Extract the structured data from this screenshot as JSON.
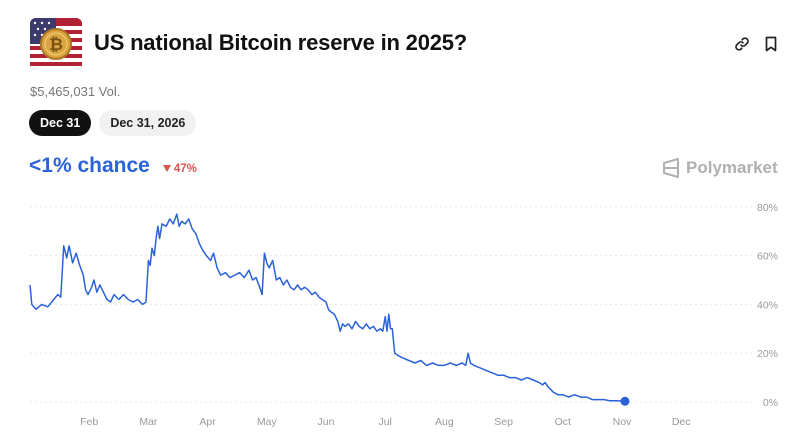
{
  "market": {
    "title": "US national Bitcoin reserve in 2025?",
    "volume": "$5,465,031 Vol.",
    "icon": "us-flag-bitcoin-icon"
  },
  "header_actions": [
    {
      "name": "link-icon"
    },
    {
      "name": "bookmark-icon"
    }
  ],
  "tabs": [
    {
      "label": "Dec 31",
      "active": true
    },
    {
      "label": "Dec 31, 2026",
      "active": false
    }
  ],
  "probability": {
    "chance_text": "<1% chance",
    "delta_text": "47%",
    "delta_direction": "down",
    "delta_color": "#d9534f"
  },
  "brand": {
    "name": "Polymarket"
  },
  "colors": {
    "line": "#2a62d9",
    "accent": "#2a62d9"
  },
  "chart_data": {
    "type": "line",
    "title": "",
    "xlabel": "",
    "ylabel": "",
    "x_ticks": [
      "Feb",
      "Mar",
      "Apr",
      "May",
      "Jun",
      "Jul",
      "Aug",
      "Sep",
      "Oct",
      "Nov",
      "Dec"
    ],
    "y_ticks": [
      "80%",
      "60%",
      "40%",
      "20%",
      "0%"
    ],
    "ylim": [
      0,
      80
    ],
    "xlim": [
      0,
      11.75
    ],
    "grid": true,
    "series": [
      {
        "values": [
          [
            0.0,
            48
          ],
          [
            0.03,
            40
          ],
          [
            0.1,
            38
          ],
          [
            0.2,
            40
          ],
          [
            0.3,
            39
          ],
          [
            0.4,
            42
          ],
          [
            0.47,
            44
          ],
          [
            0.52,
            43
          ],
          [
            0.57,
            64
          ],
          [
            0.62,
            59
          ],
          [
            0.66,
            64
          ],
          [
            0.72,
            57
          ],
          [
            0.78,
            61
          ],
          [
            0.84,
            56
          ],
          [
            0.9,
            52
          ],
          [
            0.94,
            46
          ],
          [
            0.98,
            44
          ],
          [
            1.04,
            47
          ],
          [
            1.08,
            50
          ],
          [
            1.13,
            45
          ],
          [
            1.18,
            48
          ],
          [
            1.24,
            45
          ],
          [
            1.3,
            42
          ],
          [
            1.36,
            41
          ],
          [
            1.42,
            44
          ],
          [
            1.5,
            42
          ],
          [
            1.58,
            44
          ],
          [
            1.66,
            42
          ],
          [
            1.74,
            41
          ],
          [
            1.82,
            42
          ],
          [
            1.9,
            40
          ],
          [
            1.96,
            41
          ],
          [
            2.0,
            58
          ],
          [
            2.03,
            56
          ],
          [
            2.06,
            63
          ],
          [
            2.1,
            60
          ],
          [
            2.13,
            67
          ],
          [
            2.16,
            72
          ],
          [
            2.19,
            67
          ],
          [
            2.23,
            73
          ],
          [
            2.3,
            72
          ],
          [
            2.36,
            75
          ],
          [
            2.42,
            73
          ],
          [
            2.48,
            77
          ],
          [
            2.52,
            72
          ],
          [
            2.56,
            74
          ],
          [
            2.62,
            73
          ],
          [
            2.68,
            75
          ],
          [
            2.74,
            71
          ],
          [
            2.8,
            69
          ],
          [
            2.86,
            65
          ],
          [
            2.92,
            62
          ],
          [
            2.98,
            60
          ],
          [
            3.05,
            58
          ],
          [
            3.1,
            61
          ],
          [
            3.16,
            55
          ],
          [
            3.22,
            52
          ],
          [
            3.3,
            53
          ],
          [
            3.38,
            51
          ],
          [
            3.46,
            52
          ],
          [
            3.54,
            53
          ],
          [
            3.62,
            51
          ],
          [
            3.7,
            54
          ],
          [
            3.76,
            50
          ],
          [
            3.82,
            51
          ],
          [
            3.88,
            47
          ],
          [
            3.92,
            44
          ],
          [
            3.96,
            61
          ],
          [
            4.0,
            57
          ],
          [
            4.04,
            55
          ],
          [
            4.1,
            58
          ],
          [
            4.16,
            50
          ],
          [
            4.22,
            51
          ],
          [
            4.28,
            48
          ],
          [
            4.34,
            50
          ],
          [
            4.4,
            47
          ],
          [
            4.46,
            46
          ],
          [
            4.52,
            48
          ],
          [
            4.58,
            46
          ],
          [
            4.64,
            47
          ],
          [
            4.7,
            46
          ],
          [
            4.76,
            44
          ],
          [
            4.82,
            45
          ],
          [
            4.88,
            43
          ],
          [
            4.94,
            42
          ],
          [
            5.0,
            41
          ],
          [
            5.04,
            38
          ],
          [
            5.08,
            37
          ],
          [
            5.14,
            36
          ],
          [
            5.2,
            33
          ],
          [
            5.24,
            29
          ],
          [
            5.28,
            32
          ],
          [
            5.32,
            31
          ],
          [
            5.38,
            32
          ],
          [
            5.44,
            30
          ],
          [
            5.5,
            33
          ],
          [
            5.56,
            31
          ],
          [
            5.62,
            30
          ],
          [
            5.68,
            32
          ],
          [
            5.74,
            30
          ],
          [
            5.8,
            31
          ],
          [
            5.86,
            29
          ],
          [
            5.92,
            30
          ],
          [
            5.96,
            29
          ],
          [
            6.0,
            35
          ],
          [
            6.03,
            29
          ],
          [
            6.06,
            36
          ],
          [
            6.09,
            30
          ],
          [
            6.12,
            30
          ],
          [
            6.16,
            20
          ],
          [
            6.22,
            19
          ],
          [
            6.3,
            18
          ],
          [
            6.4,
            17
          ],
          [
            6.5,
            16
          ],
          [
            6.6,
            17
          ],
          [
            6.7,
            15
          ],
          [
            6.8,
            16
          ],
          [
            6.9,
            15
          ],
          [
            7.0,
            15
          ],
          [
            7.1,
            16
          ],
          [
            7.2,
            15
          ],
          [
            7.3,
            16
          ],
          [
            7.36,
            15
          ],
          [
            7.4,
            20
          ],
          [
            7.44,
            16
          ],
          [
            7.5,
            15
          ],
          [
            7.6,
            14
          ],
          [
            7.7,
            13
          ],
          [
            7.8,
            12
          ],
          [
            7.9,
            11
          ],
          [
            8.0,
            11
          ],
          [
            8.1,
            10
          ],
          [
            8.2,
            10
          ],
          [
            8.3,
            9
          ],
          [
            8.4,
            10
          ],
          [
            8.5,
            9
          ],
          [
            8.6,
            8
          ],
          [
            8.66,
            7
          ],
          [
            8.7,
            8
          ],
          [
            8.76,
            6
          ],
          [
            8.84,
            4
          ],
          [
            8.92,
            3
          ],
          [
            9.0,
            3
          ],
          [
            9.1,
            2
          ],
          [
            9.2,
            3
          ],
          [
            9.3,
            2
          ],
          [
            9.4,
            2
          ],
          [
            9.5,
            1
          ],
          [
            9.6,
            1
          ],
          [
            9.7,
            1
          ],
          [
            9.8,
            0.5
          ],
          [
            9.9,
            0.5
          ],
          [
            10.0,
            0.4
          ],
          [
            10.05,
            0.3
          ]
        ]
      }
    ]
  }
}
